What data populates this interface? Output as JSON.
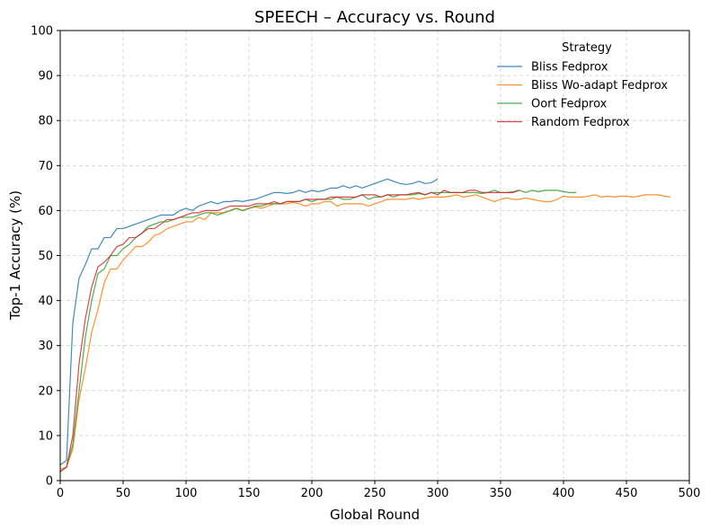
{
  "chart_data": {
    "type": "line",
    "title": "SPEECH – Accuracy vs. Round",
    "xlabel": "Global Round",
    "ylabel": "Top-1 Accuracy (%)",
    "xlim": [
      0,
      500
    ],
    "ylim": [
      0,
      100
    ],
    "xticks": [
      0,
      50,
      100,
      150,
      200,
      250,
      300,
      350,
      400,
      450,
      500
    ],
    "yticks": [
      0,
      10,
      20,
      30,
      40,
      50,
      60,
      70,
      80,
      90,
      100
    ],
    "grid": true,
    "legend": {
      "title": "Strategy",
      "placement": "top-right"
    },
    "series": [
      {
        "name": "Bliss Fedprox",
        "color": "#1f77b4",
        "x": [
          0,
          5,
          10,
          15,
          20,
          25,
          30,
          35,
          40,
          45,
          50,
          55,
          60,
          65,
          70,
          75,
          80,
          85,
          90,
          95,
          100,
          105,
          110,
          115,
          120,
          125,
          130,
          135,
          140,
          145,
          150,
          155,
          160,
          165,
          170,
          175,
          180,
          185,
          190,
          195,
          200,
          205,
          210,
          215,
          220,
          225,
          230,
          235,
          240,
          245,
          250,
          255,
          260,
          265,
          270,
          275,
          280,
          285,
          290,
          295,
          300
        ],
        "y": [
          3.5,
          4.5,
          35,
          45,
          48,
          51.5,
          51.5,
          54,
          54,
          56,
          56,
          56.5,
          57,
          57.5,
          58,
          58.5,
          59,
          59,
          59,
          60,
          60.5,
          60,
          61,
          61.5,
          62,
          61.5,
          62,
          62,
          62.2,
          62,
          62.3,
          62.5,
          63,
          63.5,
          64,
          64,
          63.8,
          64,
          64.5,
          64,
          64.5,
          64.2,
          64.5,
          65,
          65,
          65.5,
          65,
          65.5,
          65,
          65.5,
          66,
          66.5,
          67,
          66.5,
          66,
          65.8,
          66,
          66.5,
          66,
          66.2,
          67
        ]
      },
      {
        "name": "Bliss Wo-adapt Fedprox",
        "color": "#ff7f0e",
        "x": [
          0,
          5,
          10,
          15,
          20,
          25,
          30,
          35,
          40,
          45,
          50,
          55,
          60,
          65,
          70,
          75,
          80,
          85,
          90,
          95,
          100,
          105,
          110,
          115,
          120,
          125,
          130,
          135,
          140,
          145,
          150,
          155,
          160,
          165,
          170,
          175,
          180,
          185,
          190,
          195,
          200,
          205,
          210,
          215,
          220,
          225,
          230,
          235,
          240,
          245,
          250,
          255,
          260,
          265,
          270,
          275,
          280,
          285,
          290,
          295,
          300,
          305,
          310,
          315,
          320,
          325,
          330,
          335,
          340,
          345,
          350,
          355,
          360,
          365,
          370,
          375,
          380,
          385,
          390,
          395,
          400,
          405,
          410,
          415,
          420,
          425,
          430,
          435,
          440,
          445,
          450,
          455,
          460,
          465,
          470,
          475,
          480,
          485
        ],
        "y": [
          2.5,
          3,
          7,
          18,
          25,
          33,
          38,
          44,
          47,
          47,
          49,
          50.5,
          52,
          52,
          53,
          54.5,
          55,
          56,
          56.5,
          57,
          57.5,
          57.5,
          58.5,
          58,
          59.5,
          59.5,
          59.5,
          60,
          60.5,
          60,
          60.5,
          60.8,
          60.5,
          61,
          61.5,
          61.5,
          61.5,
          61.8,
          61.5,
          61,
          61.5,
          61.5,
          62,
          62,
          61,
          61.5,
          61.5,
          61.5,
          61.5,
          61,
          61.5,
          62,
          62.5,
          62.5,
          62.5,
          62.5,
          62.8,
          62.5,
          62.8,
          63,
          63,
          63,
          63.2,
          63.5,
          63,
          63.2,
          63.5,
          63,
          62.5,
          62,
          62.5,
          62.8,
          62.5,
          62.5,
          62.8,
          62.5,
          62.2,
          62,
          62,
          62.5,
          63.2,
          63,
          63,
          63,
          63.2,
          63.5,
          63,
          63.2,
          63,
          63.2,
          63.2,
          63,
          63.2,
          63.5,
          63.5,
          63.5,
          63.2,
          63
        ]
      },
      {
        "name": "Oort Fedprox",
        "color": "#2ca02c",
        "x": [
          0,
          5,
          10,
          15,
          20,
          25,
          30,
          35,
          40,
          45,
          50,
          55,
          60,
          65,
          70,
          75,
          80,
          85,
          90,
          95,
          100,
          105,
          110,
          115,
          120,
          125,
          130,
          135,
          140,
          145,
          150,
          155,
          160,
          165,
          170,
          175,
          180,
          185,
          190,
          195,
          200,
          205,
          210,
          215,
          220,
          225,
          230,
          235,
          240,
          245,
          250,
          255,
          260,
          265,
          270,
          275,
          280,
          285,
          290,
          295,
          300,
          305,
          310,
          315,
          320,
          325,
          330,
          335,
          340,
          345,
          350,
          355,
          360,
          365,
          370,
          375,
          380,
          385,
          390,
          395,
          400,
          405,
          410
        ],
        "y": [
          2,
          3,
          8,
          20,
          32,
          40,
          46,
          47,
          50,
          50,
          51.5,
          52.5,
          54,
          55,
          56.5,
          57,
          57.5,
          57.5,
          58,
          58.5,
          58.5,
          58.5,
          59,
          59.5,
          59.5,
          59,
          59.5,
          60,
          60.5,
          60,
          60.5,
          61,
          61,
          61.5,
          61.5,
          61.5,
          62,
          62,
          62,
          62.5,
          62,
          62.5,
          62.5,
          62.5,
          63,
          62.5,
          62.5,
          63,
          63.5,
          62.5,
          63,
          63,
          63.5,
          63,
          63.5,
          63.5,
          63.5,
          63.8,
          63.5,
          64,
          64,
          64,
          64,
          64,
          64,
          64,
          64,
          63.8,
          64,
          64.5,
          64,
          64,
          64.2,
          64.5,
          64,
          64.5,
          64.2,
          64.5,
          64.5,
          64.5,
          64.2,
          64,
          64
        ]
      },
      {
        "name": "Random Fedprox",
        "color": "#d62728",
        "x": [
          0,
          5,
          10,
          15,
          20,
          25,
          30,
          35,
          40,
          45,
          50,
          55,
          60,
          65,
          70,
          75,
          80,
          85,
          90,
          95,
          100,
          105,
          110,
          115,
          120,
          125,
          130,
          135,
          140,
          145,
          150,
          155,
          160,
          165,
          170,
          175,
          180,
          185,
          190,
          195,
          200,
          205,
          210,
          215,
          220,
          225,
          230,
          235,
          240,
          245,
          250,
          255,
          260,
          265,
          270,
          275,
          280,
          285,
          290,
          295,
          300,
          305,
          310,
          315,
          320,
          325,
          330,
          335,
          340,
          345,
          350,
          355,
          360,
          365
        ],
        "y": [
          2,
          3,
          10,
          26,
          36,
          43,
          47.5,
          48.5,
          50,
          52,
          52.5,
          54,
          54,
          55,
          56,
          56,
          57,
          58,
          58,
          58.5,
          59,
          59.5,
          59.5,
          60,
          60,
          60,
          60.5,
          61,
          61,
          61,
          61,
          61.5,
          61.5,
          61.5,
          62,
          61.5,
          62,
          62,
          62,
          62.5,
          62.5,
          62.5,
          62.5,
          63,
          63,
          63,
          63,
          63,
          63.5,
          63.5,
          63.5,
          63,
          63.5,
          63.5,
          63.5,
          63.5,
          63.8,
          64,
          63.5,
          64,
          63.5,
          64.5,
          64,
          64,
          64,
          64.5,
          64.5,
          64,
          64,
          64,
          64,
          64,
          64,
          64.5
        ]
      }
    ]
  }
}
